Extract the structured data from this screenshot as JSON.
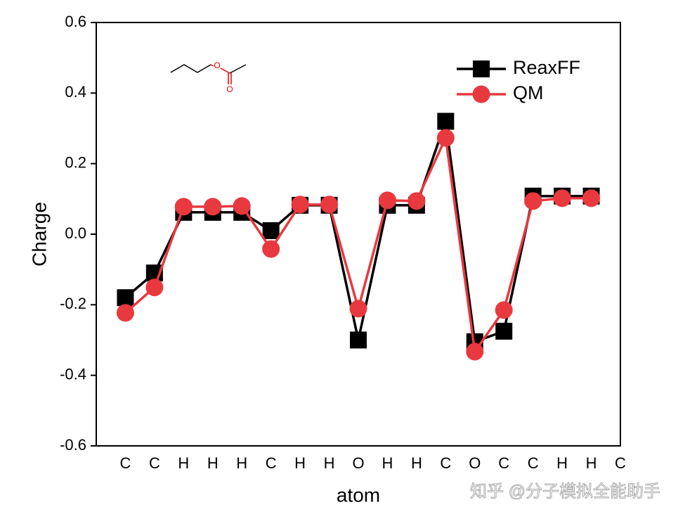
{
  "chart_data": {
    "type": "line",
    "x_label": "atom",
    "y_label": "Charge",
    "categories": [
      "C",
      "C",
      "H",
      "H",
      "H",
      "C",
      "H",
      "H",
      "O",
      "H",
      "H",
      "C",
      "O",
      "C",
      "C",
      "H",
      "H",
      "C"
    ],
    "series": [
      {
        "name": "ReaxFF",
        "color": "#000000",
        "marker": "square",
        "values": [
          -0.18,
          -0.11,
          0.062,
          0.062,
          0.062,
          0.01,
          0.082,
          0.082,
          -0.3,
          0.082,
          0.082,
          0.32,
          -0.305,
          -0.275,
          0.108,
          0.108,
          0.108,
          null
        ]
      },
      {
        "name": "QM",
        "color": "#e8393f",
        "marker": "circle",
        "values": [
          -0.223,
          -0.151,
          0.078,
          0.078,
          0.08,
          -0.042,
          0.084,
          0.084,
          -0.211,
          0.096,
          0.094,
          0.273,
          -0.333,
          -0.215,
          0.094,
          0.102,
          0.102,
          null
        ]
      }
    ],
    "ylim": [
      -0.6,
      0.6
    ],
    "yticks": [
      -0.6,
      -0.4,
      -0.2,
      {
        "value": 0,
        "label": "0.0"
      },
      0.2,
      0.4,
      0.6
    ],
    "legend": "upper right",
    "molecule_atoms": [
      "O",
      "O"
    ],
    "watermark": "知乎 @分子模拟全能助手"
  }
}
